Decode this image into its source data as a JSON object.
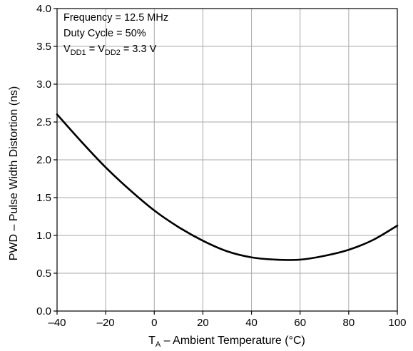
{
  "chart_data": {
    "type": "line",
    "xlabel": "T",
    "xlabel_sub": "A",
    "xlabel_rest": " – Ambient Temperature (°C)",
    "ylabel": "PWD – Pulse Width Distortion (ns)",
    "xlim": [
      -40,
      100
    ],
    "ylim": [
      0.0,
      4.0
    ],
    "x_ticks": [
      -40,
      -20,
      0,
      20,
      40,
      60,
      80,
      100
    ],
    "x_tick_labels": [
      "–40",
      "–20",
      "0",
      "20",
      "40",
      "60",
      "80",
      "100"
    ],
    "y_ticks": [
      0.0,
      0.5,
      1.0,
      1.5,
      2.0,
      2.5,
      3.0,
      3.5,
      4.0
    ],
    "y_tick_labels": [
      "0.0",
      "0.5",
      "1.0",
      "1.5",
      "2.0",
      "2.5",
      "3.0",
      "3.5",
      "4.0"
    ],
    "grid": true,
    "series": [
      {
        "color": "#000000",
        "x": [
          -40,
          -30,
          -20,
          -10,
          0,
          10,
          20,
          30,
          40,
          50,
          60,
          70,
          80,
          90,
          100
        ],
        "y": [
          2.6,
          2.24,
          1.9,
          1.6,
          1.33,
          1.11,
          0.93,
          0.79,
          0.71,
          0.68,
          0.68,
          0.73,
          0.81,
          0.94,
          1.13
        ]
      }
    ],
    "annotations": {
      "line1": "Frequency = 12.5 MHz",
      "line2": "Duty Cycle = 50%",
      "line3": {
        "v1": "V",
        "s1": "DD1",
        "mid": " = V",
        "s2": "DD2",
        "end": " = 3.3 V"
      }
    }
  }
}
